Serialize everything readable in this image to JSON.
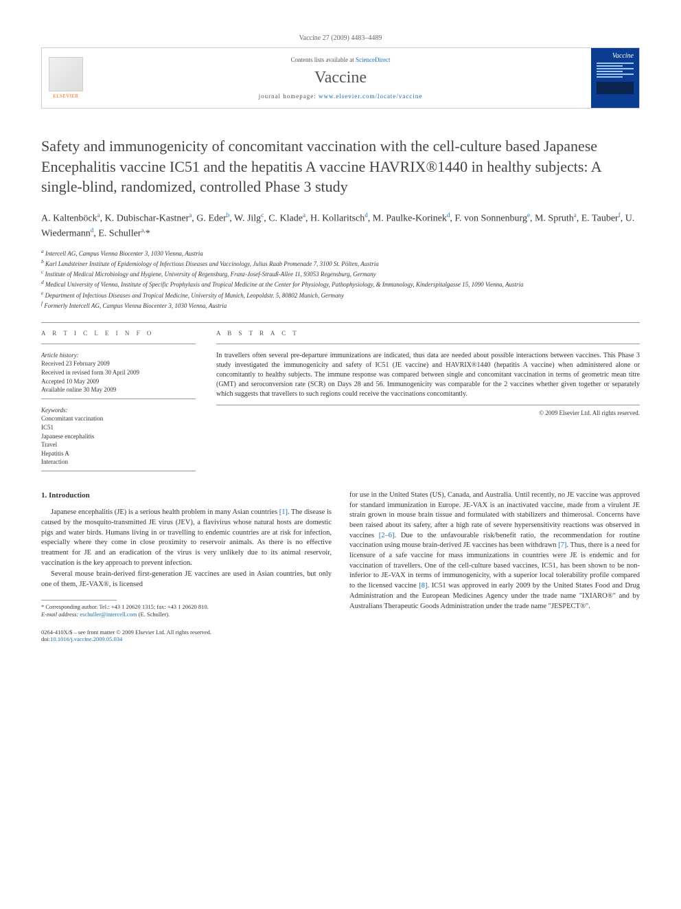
{
  "citation": "Vaccine 27 (2009) 4483–4489",
  "header": {
    "contents_prefix": "Contents lists available at ",
    "contents_link": "ScienceDirect",
    "journal": "Vaccine",
    "homepage_prefix": "journal homepage: ",
    "homepage_url": "www.elsevier.com/locate/vaccine",
    "elsevier": "ELSEVIER",
    "cover_title": "Vaccine"
  },
  "title": "Safety and immunogenicity of concomitant vaccination with the cell-culture based Japanese Encephalitis vaccine IC51 and the hepatitis A vaccine HAVRIX®1440 in healthy subjects: A single-blind, randomized, controlled Phase 3 study",
  "authors_html": "A. Kaltenböck<sup>a</sup>, K. Dubischar-Kastner<sup>a</sup>, G. Eder<sup>b</sup>, W. Jilg<sup>c</sup>, C. Klade<sup>a</sup>, H. Kollaritsch<sup>d</sup>, M. Paulke-Korinek<sup>d</sup>, F. von Sonnenburg<sup>e</sup>, M. Spruth<sup>a</sup>, E. Tauber<sup>f</sup>, U. Wiedermann<sup>d</sup>, E. Schuller<sup>a,</sup>*",
  "affiliations": [
    "a Intercell AG, Campus Vienna Biocenter 3, 1030 Vienna, Austria",
    "b Karl Landsteiner Institute of Epidemiology of Infectious Diseases and Vaccinology, Julius Raab Promenade 7, 3100 St. Pölten, Austria",
    "c Institute of Medical Microbiology and Hygiene, University of Regensburg, Franz-Josef-Strauß-Allee 11, 93053 Regensburg, Germany",
    "d Medical University of Vienna, Institute of Specific Prophylaxis and Tropical Medicine at the Center for Physiology, Pathophysiology, & Immunology, Kinderspitalgasse 15, 1090 Vienna, Austria",
    "e Department of Infectious Diseases and Tropical Medicine, University of Munich, Leopoldstr. 5, 80802 Munich, Germany",
    "f Formerly Intercell AG, Campus Vienna Biocenter 3, 1030 Vienna, Austria"
  ],
  "article_info": {
    "heading": "A R T I C L E   I N F O",
    "history_label": "Article history:",
    "history": [
      "Received 23 February 2009",
      "Received in revised form 30 April 2009",
      "Accepted 10 May 2009",
      "Available online 30 May 2009"
    ],
    "keywords_label": "Keywords:",
    "keywords": [
      "Concomitant vaccination",
      "IC51",
      "Japanese encephalitis",
      "Travel",
      "Hepatitis A",
      "Interaction"
    ]
  },
  "abstract": {
    "heading": "A B S T R A C T",
    "text": "In travellers often several pre-departure immunizations are indicated, thus data are needed about possible interactions between vaccines. This Phase 3 study investigated the immunogenicity and safety of IC51 (JE vaccine) and HAVRIX®1440 (hepatitis A vaccine) when administered alone or concomitantly to healthy subjects. The immune response was compared between single and concomitant vaccination in terms of geometric mean titre (GMT) and seroconversion rate (SCR) on Days 28 and 56. Immunogenicity was comparable for the 2 vaccines whether given together or separately which suggests that travellers to such regions could receive the vaccinations concomitantly.",
    "copyright": "© 2009 Elsevier Ltd. All rights reserved."
  },
  "sections": {
    "intro_heading": "1.  Introduction",
    "para1_a": "Japanese encephalitis (JE) is a serious health problem in many Asian countries ",
    "para1_cite1": "[1]",
    "para1_b": ". The disease is caused by the mosquito-transmitted JE virus (JEV), a flavivirus whose natural hosts are domestic pigs and water birds. Humans living in or travelling to endemic countries are at risk for infection, especially where they come in close proximity to reservoir animals. As there is no effective treatment for JE and an eradication of the virus is very unlikely due to its animal reservoir, vaccination is the key approach to prevent infection.",
    "para2": "Several mouse brain-derived first-generation JE vaccines are used in Asian countries, but only one of them, JE-VAX®, is licensed",
    "para3_a": "for use in the United States (US), Canada, and Australia. Until recently, no JE vaccine was approved for standard immunization in Europe. JE-VAX is an inactivated vaccine, made from a virulent JE strain grown in mouse brain tissue and formulated with stabilizers and thimerosal. Concerns have been raised about its safety, after a high rate of severe hypersensitivity reactions was observed in vaccines ",
    "para3_cite1": "[2–6]",
    "para3_b": ". Due to the unfavourable risk/benefit ratio, the recommendation for routine vaccination using mouse brain-derived JE vaccines has been withdrawn ",
    "para3_cite2": "[7]",
    "para3_c": ". Thus, there is a need for licensure of a safe vaccine for mass immunizations in countries were JE is endemic and for vaccination of travellers. One of the cell-culture based vaccines, IC51, has been shown to be non-inferior to JE-VAX in terms of immunogenicity, with a superior local tolerability profile compared to the licensed vaccine ",
    "para3_cite3": "[8]",
    "para3_d": ". IC51 was approved in early 2009 by the United States Food and Drug Administration and the European Medicines Agency under the trade name \"IXIARO®\" and by Australians Therapeutic Goods Administration under the trade name \"JESPECT®\"."
  },
  "footnote": {
    "corr": "* Corresponding author. Tel.: +43 1 20620 1315; fax: +43 1 20620 810.",
    "email_label": "E-mail address: ",
    "email": "eschuller@intercell.com",
    "email_suffix": " (E. Schuller)."
  },
  "bottom": {
    "issn_line": "0264-410X/$ – see front matter © 2009 Elsevier Ltd. All rights reserved.",
    "doi_label": "doi:",
    "doi": "10.1016/j.vaccine.2009.05.034"
  },
  "colors": {
    "link": "#1a6bb3",
    "text": "#333333",
    "rule": "#999999",
    "cover_bg": "#0a3d91",
    "elsevier_orange": "#ff6600"
  }
}
